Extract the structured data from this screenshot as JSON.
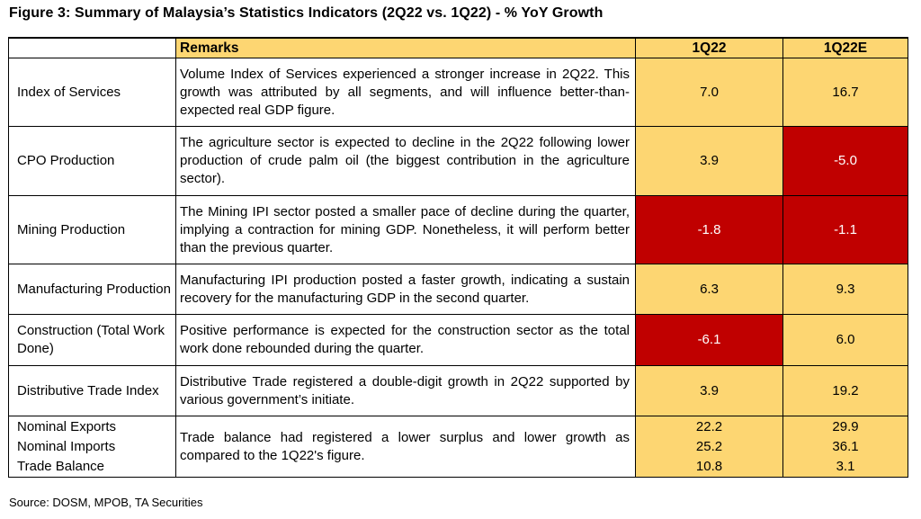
{
  "title": "Figure 3: Summary of Malaysia’s Statistics Indicators (2Q22 vs. 1Q22) - % YoY Growth",
  "headers": {
    "indicator": "",
    "remarks": "Remarks",
    "col1": "1Q22",
    "col2": "1Q22E"
  },
  "rows": [
    {
      "indicator": "Index of Services",
      "remarks": "Volume Index of Services experienced a stronger increase in 2Q22. This growth was attributed by all segments, and will influence better-than-expected real GDP figure.",
      "v1": "7.0",
      "v2": "16.7"
    },
    {
      "indicator": "CPO Production",
      "remarks": "The agriculture sector is expected to decline in the 2Q22 following lower production of crude palm oil (the biggest contribution in the agriculture sector).",
      "v1": "3.9",
      "v2": "-5.0"
    },
    {
      "indicator": "Mining Production",
      "remarks": "The Mining IPI sector posted a smaller pace of decline during the quarter, implying a contraction for mining GDP. Nonetheless, it will perform better than the previous quarter.",
      "v1": "-1.8",
      "v2": "-1.1"
    },
    {
      "indicator": "Manufacturing Production",
      "remarks": "Manufacturing IPI production posted a faster growth, indicating a sustain recovery for the manufacturing GDP in the second quarter.",
      "v1": "6.3",
      "v2": "9.3"
    },
    {
      "indicator": "Construction (Total Work Done)",
      "remarks": "Positive performance is expected for the construction sector as the total work done rebounded during the quarter.",
      "v1": "-6.1",
      "v2": "6.0"
    },
    {
      "indicator": "Distributive Trade Index",
      "remarks": "Distributive Trade registered a double-digit growth in 2Q22 supported by various government’s initiate.",
      "v1": "3.9",
      "v2": "19.2"
    }
  ],
  "trade": {
    "indicators": [
      "Nominal Exports",
      "Nominal Imports",
      "Trade Balance"
    ],
    "remarks": "Trade balance had registered a lower surplus and lower growth as compared to the 1Q22's figure.",
    "v1": [
      "22.2",
      "25.2",
      "10.8"
    ],
    "v2": [
      "29.9",
      "36.1",
      "3.1"
    ]
  },
  "colors": {
    "positive_fill": "#fdd672",
    "negative_fill": "#c00000"
  },
  "source": "Source: DOSM, MPOB, TA Securities"
}
